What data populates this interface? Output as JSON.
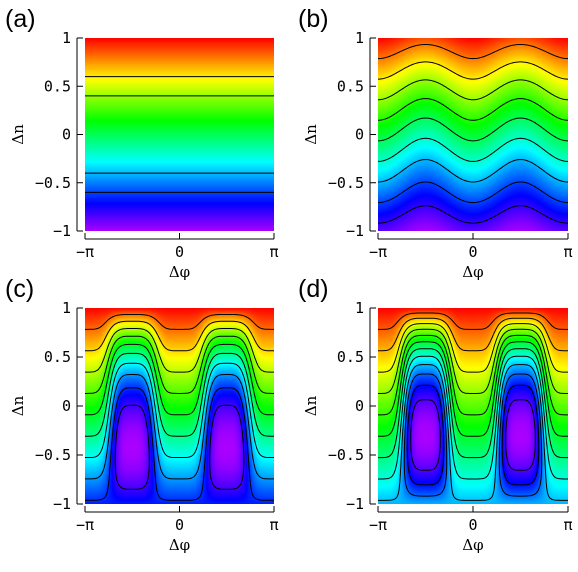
{
  "chart_data": [
    {
      "type": "heatmap",
      "panel": "(a)",
      "variant": "flat",
      "params": {
        "amp": 0.0,
        "depth": 0.0
      },
      "xlabel": "Δφ",
      "ylabel": "Δn",
      "xlim": [
        -3.14159,
        3.14159
      ],
      "ylim": [
        -1,
        1
      ],
      "xticks": [
        {
          "value": -3.14159,
          "label": "−π"
        },
        {
          "value": 0,
          "label": "0"
        },
        {
          "value": 3.14159,
          "label": "π"
        }
      ],
      "yticks": [
        {
          "value": 1,
          "label": "1"
        },
        {
          "value": 0.5,
          "label": "0.5"
        },
        {
          "value": 0,
          "label": "0"
        },
        {
          "value": -0.5,
          "label": "−0.5"
        },
        {
          "value": -1,
          "label": "−1"
        }
      ],
      "colormap": "rainbow (violet low → red high)",
      "contour_count": 9
    },
    {
      "type": "heatmap",
      "panel": "(b)",
      "variant": "wavy",
      "params": {
        "amp": 0.12,
        "depth": 0.0
      },
      "xlabel": "Δφ",
      "ylabel": "Δn",
      "xlim": [
        -3.14159,
        3.14159
      ],
      "ylim": [
        -1,
        1
      ],
      "xticks": [
        {
          "value": -3.14159,
          "label": "−π"
        },
        {
          "value": 0,
          "label": "0"
        },
        {
          "value": 3.14159,
          "label": "π"
        }
      ],
      "yticks": [
        {
          "value": 1,
          "label": "1"
        },
        {
          "value": 0.5,
          "label": "0.5"
        },
        {
          "value": 0,
          "label": "0"
        },
        {
          "value": -0.5,
          "label": "−0.5"
        },
        {
          "value": -1,
          "label": "−1"
        }
      ],
      "colormap": "rainbow (violet low → red high)",
      "contour_count": 9
    },
    {
      "type": "heatmap",
      "panel": "(c)",
      "variant": "islands",
      "params": {
        "amp": 0.0,
        "depth": 0.95
      },
      "xlabel": "Δφ",
      "ylabel": "Δn",
      "xlim": [
        -3.14159,
        3.14159
      ],
      "ylim": [
        -1,
        1
      ],
      "xticks": [
        {
          "value": -3.14159,
          "label": "−π"
        },
        {
          "value": 0,
          "label": "0"
        },
        {
          "value": 3.14159,
          "label": "π"
        }
      ],
      "yticks": [
        {
          "value": 1,
          "label": "1"
        },
        {
          "value": 0.5,
          "label": "0.5"
        },
        {
          "value": 0,
          "label": "0"
        },
        {
          "value": -0.5,
          "label": "−0.5"
        },
        {
          "value": -1,
          "label": "−1"
        }
      ],
      "colormap": "rainbow (violet low → red high)",
      "contour_count": 10
    },
    {
      "type": "heatmap",
      "panel": "(d)",
      "variant": "islands",
      "params": {
        "amp": 0.0,
        "depth": 1.35
      },
      "xlabel": "Δφ",
      "ylabel": "Δn",
      "xlim": [
        -3.14159,
        3.14159
      ],
      "ylim": [
        -1,
        1
      ],
      "xticks": [
        {
          "value": -3.14159,
          "label": "−π"
        },
        {
          "value": 0,
          "label": "0"
        },
        {
          "value": 3.14159,
          "label": "π"
        }
      ],
      "yticks": [
        {
          "value": 1,
          "label": "1"
        },
        {
          "value": 0.5,
          "label": "0.5"
        },
        {
          "value": 0,
          "label": "0"
        },
        {
          "value": -0.5,
          "label": "−0.5"
        },
        {
          "value": -1,
          "label": "−1"
        }
      ],
      "colormap": "rainbow (violet low → red high)",
      "contour_count": 12
    }
  ]
}
